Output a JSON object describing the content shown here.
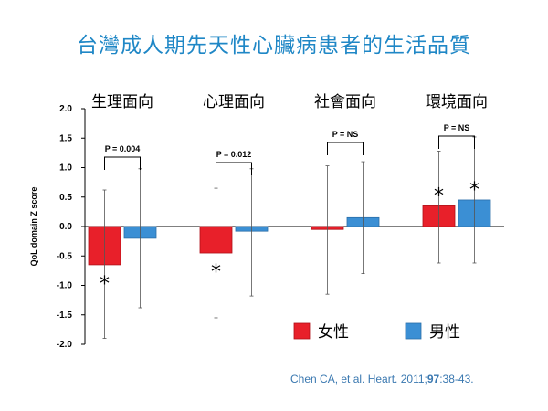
{
  "title": "台灣成人期先天性心臟病患者的生活品質",
  "citation": {
    "prefix": "Chen CA, et al. Heart. 2011;",
    "volume": "97",
    "suffix": ":38-43."
  },
  "colors": {
    "female": "#e8202a",
    "male": "#3b8fd4",
    "accent": "#1f87c6"
  },
  "chart_data": {
    "type": "bar",
    "categories": [
      "生理面向",
      "心理面向",
      "社會面向",
      "環境面向"
    ],
    "ylabel": "QoL domain Z score",
    "ylim": [
      -2.0,
      2.0
    ],
    "yticks": [
      "2.0",
      "1.5",
      "1.0",
      "0.5",
      "0.0",
      "-0.5",
      "-1.0",
      "-1.5",
      "-2.0"
    ],
    "grid": false,
    "legend_position": "bottom-right",
    "series": [
      {
        "name": "女性",
        "color": "#e8202a",
        "values": [
          -0.65,
          -0.45,
          -0.05,
          0.35
        ],
        "error_low": [
          -1.9,
          -1.55,
          -1.15,
          -0.62
        ],
        "error_high": [
          0.62,
          0.65,
          1.03,
          1.28
        ],
        "significant": [
          true,
          true,
          false,
          true
        ]
      },
      {
        "name": "男性",
        "color": "#3b8fd4",
        "values": [
          -0.2,
          -0.08,
          0.15,
          0.45
        ],
        "error_low": [
          -1.38,
          -1.18,
          -0.8,
          -0.62
        ],
        "error_high": [
          0.98,
          0.98,
          1.1,
          1.52
        ],
        "significant": [
          false,
          false,
          false,
          true
        ]
      }
    ],
    "comparisons": [
      "P = 0.004",
      "P = 0.012",
      "P = NS",
      "P = NS"
    ],
    "significance_marker": "*"
  }
}
